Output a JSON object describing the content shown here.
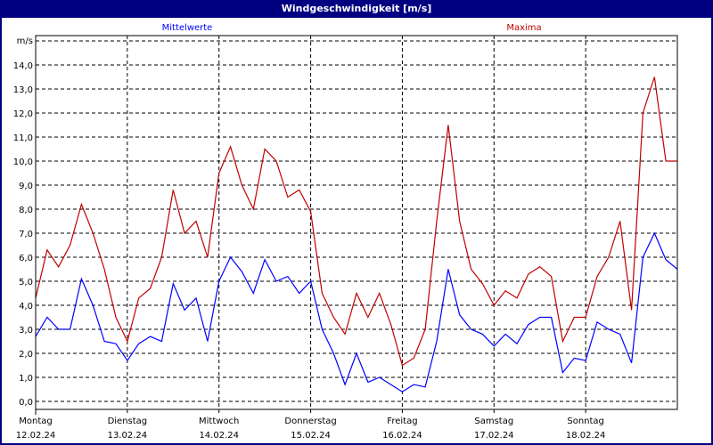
{
  "title": "Windgeschwindigkeit [m/s]",
  "chart_data": {
    "type": "line",
    "title": "Windgeschwindigkeit [m/s]",
    "ylabel": "m/s",
    "xlabel": "",
    "ylim": [
      0,
      15
    ],
    "yticks": [
      "0,0",
      "1,0",
      "2,0",
      "3,0",
      "4,0",
      "5,0",
      "6,0",
      "7,0",
      "8,0",
      "9,0",
      "10,0",
      "11,0",
      "12,0",
      "13,0",
      "14,0"
    ],
    "grid": true,
    "x_interval_hours": 3,
    "days": [
      {
        "name": "Montag",
        "date": "12.02.24"
      },
      {
        "name": "Dienstag",
        "date": "13.02.24"
      },
      {
        "name": "Mittwoch",
        "date": "14.02.24"
      },
      {
        "name": "Donnerstag",
        "date": "15.02.24"
      },
      {
        "name": "Freitag",
        "date": "16.02.24"
      },
      {
        "name": "Samstag",
        "date": "17.02.24"
      },
      {
        "name": "Sonntag",
        "date": "18.02.24"
      }
    ],
    "series": [
      {
        "name": "Mittelwerte",
        "color": "#0000ff",
        "values": [
          2.7,
          3.5,
          3.0,
          3.0,
          5.1,
          4.0,
          2.5,
          2.4,
          1.7,
          2.4,
          2.7,
          2.5,
          4.9,
          3.8,
          4.3,
          2.5,
          5.0,
          6.0,
          5.4,
          4.5,
          5.9,
          5.0,
          5.2,
          4.5,
          5.0,
          3.0,
          2.0,
          0.7,
          2.0,
          0.8,
          1.0,
          0.7,
          0.4,
          0.7,
          0.6,
          2.5,
          5.5,
          3.6,
          3.0,
          2.8,
          2.3,
          2.8,
          2.4,
          3.2,
          3.5,
          3.5,
          1.2,
          1.8,
          1.7,
          3.3,
          3.0,
          2.8,
          1.6,
          6.0,
          7.0,
          5.9,
          5.5
        ]
      },
      {
        "name": "Maxima",
        "color": "#c00000",
        "values": [
          4.3,
          6.3,
          5.6,
          6.5,
          8.2,
          7.0,
          5.5,
          3.5,
          2.5,
          4.3,
          4.7,
          6.0,
          8.8,
          7.0,
          7.5,
          6.0,
          9.5,
          10.6,
          9.0,
          8.0,
          10.5,
          10.0,
          8.5,
          8.8,
          7.9,
          4.5,
          3.5,
          2.8,
          4.5,
          3.5,
          4.5,
          3.2,
          1.5,
          1.8,
          3.0,
          7.5,
          11.5,
          7.5,
          5.5,
          4.9,
          4.0,
          4.6,
          4.3,
          5.3,
          5.6,
          5.2,
          2.5,
          3.5,
          3.5,
          5.2,
          6.0,
          7.5,
          3.8,
          12.0,
          13.5,
          10.0,
          10.0
        ]
      }
    ],
    "legend": "top"
  }
}
